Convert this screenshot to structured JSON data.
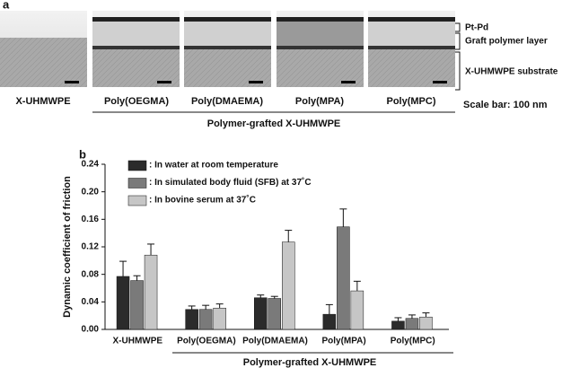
{
  "panel_a": {
    "label": "a",
    "images": [
      "X-UHMWPE",
      "Poly(OEGMA)",
      "Poly(DMAEMA)",
      "Poly(MPA)",
      "Poly(MPC)"
    ],
    "scale_bar": "Scale bar: 100 nm",
    "group_label": "Polymer-grafted X-UHMWPE",
    "annotations": [
      "Pt-Pd",
      "Graft polymer layer",
      "X-UHMWPE substrate"
    ]
  },
  "chart_data": {
    "type": "bar",
    "panel_label": "b",
    "ylabel": "Dynamic coefficient of friction",
    "group_label": "Polymer-grafted X-UHMWPE",
    "categories": [
      "X-UHMWPE",
      "Poly(OEGMA)",
      "Poly(DMAEMA)",
      "Poly(MPA)",
      "Poly(MPC)"
    ],
    "series": [
      {
        "name": ": In water at room temperature",
        "color": "#2b2b2b",
        "values": [
          0.077,
          0.029,
          0.046,
          0.022,
          0.012
        ],
        "errors": [
          0.022,
          0.005,
          0.004,
          0.014,
          0.005
        ]
      },
      {
        "name": ": In simulated body fluid (SFB) at 37˚C",
        "color": "#7a7a7a",
        "values": [
          0.071,
          0.029,
          0.045,
          0.149,
          0.016
        ],
        "errors": [
          0.007,
          0.006,
          0.003,
          0.026,
          0.005
        ]
      },
      {
        "name": ": In bovine serum at 37˚C",
        "color": "#c6c6c6",
        "values": [
          0.108,
          0.031,
          0.127,
          0.056,
          0.018
        ],
        "errors": [
          0.016,
          0.006,
          0.017,
          0.014,
          0.006
        ]
      }
    ],
    "ylim": [
      0,
      0.24
    ],
    "yticks": [
      {
        "value": 0,
        "label": "0.00"
      },
      0.04,
      0.08,
      0.12,
      0.16,
      {
        "value": 0.2,
        "label": "0.20"
      },
      0.24
    ]
  }
}
